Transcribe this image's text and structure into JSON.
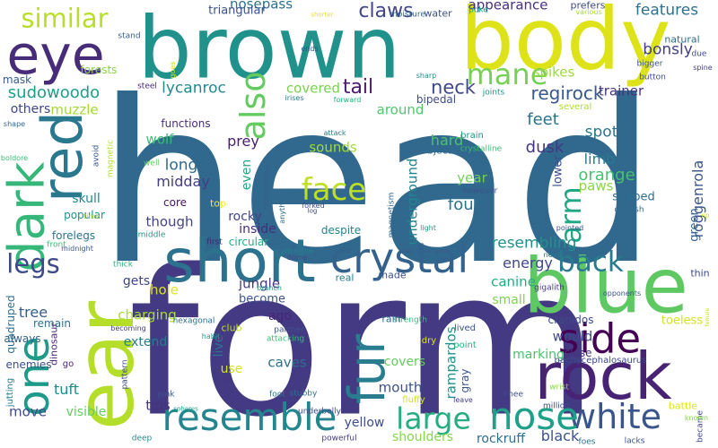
{
  "title": "",
  "words": [
    {
      "text": "head",
      "color": "#31688e"
    },
    {
      "text": "form",
      "color": "#443a83"
    },
    {
      "text": "brown",
      "color": "#21918c"
    },
    {
      "text": "body",
      "color": "#dde318"
    },
    {
      "text": "blue",
      "color": "#5ec962"
    },
    {
      "text": "rock",
      "color": "#482374"
    },
    {
      "text": "ear",
      "color": "#b5de2b"
    },
    {
      "text": "eye",
      "color": "#472c7a"
    },
    {
      "text": "red",
      "color": "#2a788e"
    },
    {
      "text": "dark",
      "color": "#35b779"
    },
    {
      "text": "one",
      "color": "#1f9a8a"
    },
    {
      "text": "short",
      "color": "#2c728e"
    },
    {
      "text": "crystal",
      "color": "#33638d"
    },
    {
      "text": "fur",
      "color": "#287d8e"
    },
    {
      "text": "white",
      "color": "#39568c"
    },
    {
      "text": "nose",
      "color": "#1fa088"
    },
    {
      "text": "side",
      "color": "#440154"
    },
    {
      "text": "resemble",
      "color": "#25858e"
    },
    {
      "text": "also",
      "color": "#63cb5f"
    },
    {
      "text": "face",
      "color": "#bddf26"
    },
    {
      "text": "legs",
      "color": "#3e4989"
    },
    {
      "text": "large",
      "color": "#27ad81"
    },
    {
      "text": "mane",
      "color": "#75d054"
    },
    {
      "text": "similar",
      "color": "#b8de29"
    },
    {
      "text": "back",
      "color": "#297a8e"
    },
    {
      "text": "arm",
      "color": "#22a785"
    },
    {
      "text": "claws",
      "color": "#404688"
    },
    {
      "text": "tail",
      "color": "#481b6d"
    },
    {
      "text": "neck",
      "color": "#3f4889"
    },
    {
      "text": "sudowoodo",
      "color": "#1f9e89"
    },
    {
      "text": "lycanroc",
      "color": "#23898e"
    },
    {
      "text": "regirock",
      "color": "#38598c"
    },
    {
      "text": "features",
      "color": "#2d718e"
    },
    {
      "text": "bonsly",
      "color": "#433e85"
    },
    {
      "text": "appearance",
      "color": "#472f7d"
    },
    {
      "text": "nosepass",
      "color": "#2e6f8e"
    },
    {
      "text": "triangular",
      "color": "#3b528b"
    },
    {
      "text": "water",
      "color": "#3c508b"
    },
    {
      "text": "poke",
      "color": "#20a486"
    },
    {
      "text": "prefers",
      "color": "#3e4a89"
    },
    {
      "text": "various",
      "color": "#aadc32"
    },
    {
      "text": "moisture",
      "color": "#30698e"
    },
    {
      "text": "shorter",
      "color": "#dde318"
    },
    {
      "text": "stand",
      "color": "#355f8d"
    },
    {
      "text": "covered",
      "color": "#7ad151"
    },
    {
      "text": "spikes",
      "color": "#9bd93c"
    },
    {
      "text": "trainer",
      "color": "#46327e"
    },
    {
      "text": "around",
      "color": "#52c569"
    },
    {
      "text": "muzzle",
      "color": "#a2da37"
    },
    {
      "text": "others",
      "color": "#3f4788"
    },
    {
      "text": "mask",
      "color": "#365c8d"
    },
    {
      "text": "forests",
      "color": "#8bd646"
    },
    {
      "text": "steel",
      "color": "#482979"
    },
    {
      "text": "bipedal",
      "color": "#3e4c8a"
    },
    {
      "text": "joints",
      "color": "#21918c"
    },
    {
      "text": "sharp",
      "color": "#228c8d"
    },
    {
      "text": "several",
      "color": "#b0dd2f"
    },
    {
      "text": "forward",
      "color": "#26ad81"
    },
    {
      "text": "irises",
      "color": "#2a788e"
    },
    {
      "text": "ends",
      "color": "#3d4e8a"
    },
    {
      "text": "goes",
      "color": "#d0e11c"
    },
    {
      "text": "feet",
      "color": "#2b748e"
    },
    {
      "text": "spot",
      "color": "#2c738e"
    },
    {
      "text": "dusk",
      "color": "#453781"
    },
    {
      "text": "limb",
      "color": "#287c8e"
    },
    {
      "text": "orange",
      "color": "#48c16e"
    },
    {
      "text": "paws",
      "color": "#8bd646"
    },
    {
      "text": "shaped",
      "color": "#2e6d8e"
    },
    {
      "text": "grayish",
      "color": "#2e6d8e"
    },
    {
      "text": "roggenrola",
      "color": "#39568c"
    },
    {
      "text": "green",
      "color": "#34618d"
    },
    {
      "text": "lower",
      "color": "#3c4f8a"
    },
    {
      "text": "hard",
      "color": "#4ec36b"
    },
    {
      "text": "brain",
      "color": "#1f948c"
    },
    {
      "text": "objects",
      "color": "#2f6c8e"
    },
    {
      "text": "crystalline",
      "color": "#3ebc74"
    },
    {
      "text": "attack",
      "color": "#27808e"
    },
    {
      "text": "sounds",
      "color": "#a2da37"
    },
    {
      "text": "prey",
      "color": "#481f70"
    },
    {
      "text": "wolf",
      "color": "#3bbb75"
    },
    {
      "text": "functions",
      "color": "#472d7b"
    },
    {
      "text": "long",
      "color": "#2f6b8e"
    },
    {
      "text": "midday",
      "color": "#433d84"
    },
    {
      "text": "core",
      "color": "#471164"
    },
    {
      "text": "though",
      "color": "#414487"
    },
    {
      "text": "top",
      "color": "#fde725"
    },
    {
      "text": "even",
      "color": "#22a884"
    },
    {
      "text": "inside",
      "color": "#472d7b"
    },
    {
      "text": "rocky",
      "color": "#414487"
    },
    {
      "text": "circular",
      "color": "#25ab82"
    },
    {
      "text": "despite",
      "color": "#26828e"
    },
    {
      "text": "underground",
      "color": "#25858e"
    },
    {
      "text": "year",
      "color": "#73d056"
    },
    {
      "text": "four",
      "color": "#2c728e"
    },
    {
      "text": "however",
      "color": "#3b528b"
    },
    {
      "text": "skull",
      "color": "#23888e"
    },
    {
      "text": "popular",
      "color": "#20928c"
    },
    {
      "text": "forelegs",
      "color": "#2c738e"
    },
    {
      "text": "front",
      "color": "#38b977"
    },
    {
      "text": "midnight",
      "color": "#38598c"
    },
    {
      "text": "boldore",
      "color": "#3bbb75"
    },
    {
      "text": "shape",
      "color": "#31688e"
    },
    {
      "text": "avoid",
      "color": "#39558c"
    },
    {
      "text": "magnetic",
      "color": "#b5de2b"
    },
    {
      "text": "well",
      "color": "#5ec962"
    },
    {
      "text": "time",
      "color": "#a8db34"
    },
    {
      "text": "forked",
      "color": "#3d4e8a"
    },
    {
      "text": "terminology",
      "color": "#34618d"
    },
    {
      "text": "anything",
      "color": "#30698e"
    },
    {
      "text": "log",
      "color": "#3f4889"
    },
    {
      "text": "light",
      "color": "#1fa088"
    },
    {
      "text": "magnetism",
      "color": "#32658e"
    },
    {
      "text": "middle",
      "color": "#1f978b"
    },
    {
      "text": "first",
      "color": "#482374"
    },
    {
      "text": "resembling",
      "color": "#21918c"
    },
    {
      "text": "energy",
      "color": "#3f4889"
    },
    {
      "text": "canine",
      "color": "#25ab82"
    },
    {
      "text": "small",
      "color": "#7fd34e"
    },
    {
      "text": "gets",
      "color": "#404688"
    },
    {
      "text": "jungle",
      "color": "#453882"
    },
    {
      "text": "become",
      "color": "#3b528b"
    },
    {
      "text": "hole",
      "color": "#dde318"
    },
    {
      "text": "charging",
      "color": "#a8db34"
    },
    {
      "text": "ago",
      "color": "#482575"
    },
    {
      "text": "tree",
      "color": "#365c8d"
    },
    {
      "text": "remain",
      "color": "#2c728e"
    },
    {
      "text": "extend",
      "color": "#287c8e"
    },
    {
      "text": "live",
      "color": "#2c738e"
    },
    {
      "text": "use",
      "color": "#d8e219"
    },
    {
      "text": "caves",
      "color": "#2d708e"
    },
    {
      "text": "covers",
      "color": "#65cb5e"
    },
    {
      "text": "mouth",
      "color": "#3b528b"
    },
    {
      "text": "rampardos",
      "color": "#21918c"
    },
    {
      "text": "marking",
      "color": "#48c16e"
    },
    {
      "text": "would",
      "color": "#3e4989"
    },
    {
      "text": "gray",
      "color": "#3b528b"
    },
    {
      "text": "cranidos",
      "color": "#3e4a89"
    },
    {
      "text": "close",
      "color": "#46337f"
    },
    {
      "text": "toeless",
      "color": "#d2e21b"
    },
    {
      "text": "pachycephalosaurus",
      "color": "#3e4989"
    },
    {
      "text": "pattern",
      "color": "#3f4889"
    },
    {
      "text": "always",
      "color": "#34618d"
    },
    {
      "text": "enemies",
      "color": "#3c508b"
    },
    {
      "text": "go",
      "color": "#482475"
    },
    {
      "text": "tuft",
      "color": "#228b8d"
    },
    {
      "text": "move",
      "color": "#3e4a89"
    },
    {
      "text": "visible",
      "color": "#63cb5f"
    },
    {
      "text": "tips",
      "color": "#46327e"
    },
    {
      "text": "yellow",
      "color": "#3d4e8a"
    },
    {
      "text": "shoulders",
      "color": "#86d549"
    },
    {
      "text": "rockruff",
      "color": "#2e6f8e"
    },
    {
      "text": "black",
      "color": "#3b528b"
    },
    {
      "text": "quadruped",
      "color": "#2d708e"
    },
    {
      "text": "jutting",
      "color": "#27808e"
    },
    {
      "text": "dinosaur",
      "color": "#482878"
    },
    {
      "text": "thick",
      "color": "#2ab07f"
    },
    {
      "text": "hexagonal",
      "color": "#2e6f8e"
    },
    {
      "text": "made",
      "color": "#3b528b"
    },
    {
      "text": "real",
      "color": "#287c8e"
    },
    {
      "text": "dome",
      "color": "#3e4a89"
    },
    {
      "text": "partner",
      "color": "#3b528b"
    },
    {
      "text": "attacking",
      "color": "#3aba76"
    },
    {
      "text": "club",
      "color": "#bddf26"
    },
    {
      "text": "habit",
      "color": "#1f9a8a"
    },
    {
      "text": "becoming",
      "color": "#433e85"
    },
    {
      "text": "stubby",
      "color": "#2c728e"
    },
    {
      "text": "pink",
      "color": "#3b528b"
    },
    {
      "text": "sun",
      "color": "#46337f"
    },
    {
      "text": "foot",
      "color": "#2a788e"
    },
    {
      "text": "underbelly",
      "color": "#3e4989"
    },
    {
      "text": "spheres",
      "color": "#1fa088"
    },
    {
      "text": "deep",
      "color": "#238a8d"
    },
    {
      "text": "powerful",
      "color": "#453882"
    },
    {
      "text": "fluffy",
      "color": "#d0e11c"
    },
    {
      "text": "strength",
      "color": "#38b977"
    },
    {
      "text": "rain",
      "color": "#2e6d8e"
    },
    {
      "text": "dry",
      "color": "#dde318"
    },
    {
      "text": "lived",
      "color": "#3b528b"
    },
    {
      "text": "point",
      "color": "#2ab07f"
    },
    {
      "text": "knee",
      "color": "#3e4a89"
    },
    {
      "text": "leave",
      "color": "#433e85"
    },
    {
      "text": "wrist",
      "color": "#86d549"
    },
    {
      "text": "million",
      "color": "#3e4a89"
    },
    {
      "text": "foes",
      "color": "#2e6f8e"
    },
    {
      "text": "lacks",
      "color": "#3b528b"
    },
    {
      "text": "became",
      "color": "#3f4889"
    },
    {
      "text": "battle",
      "color": "#dde318"
    },
    {
      "text": "female",
      "color": "#d2e21b"
    },
    {
      "text": "thin",
      "color": "#3e4a89"
    },
    {
      "text": "gigalith",
      "color": "#453882"
    },
    {
      "text": "opponents",
      "color": "#3b528b"
    },
    {
      "text": "never",
      "color": "#2a788e"
    },
    {
      "text": "pointed",
      "color": "#3b528b"
    },
    {
      "text": "branch",
      "color": "#1f9a8a"
    },
    {
      "text": "up",
      "color": "#d8e219"
    },
    {
      "text": "due",
      "color": "#3e4a89"
    },
    {
      "text": "spine",
      "color": "#433e85"
    },
    {
      "text": "natural",
      "color": "#2e6f8e"
    },
    {
      "text": "bigger",
      "color": "#3b528b"
    },
    {
      "text": "button",
      "color": "#3e4989"
    },
    {
      "text": "known",
      "color": "#86d549"
    }
  ]
}
